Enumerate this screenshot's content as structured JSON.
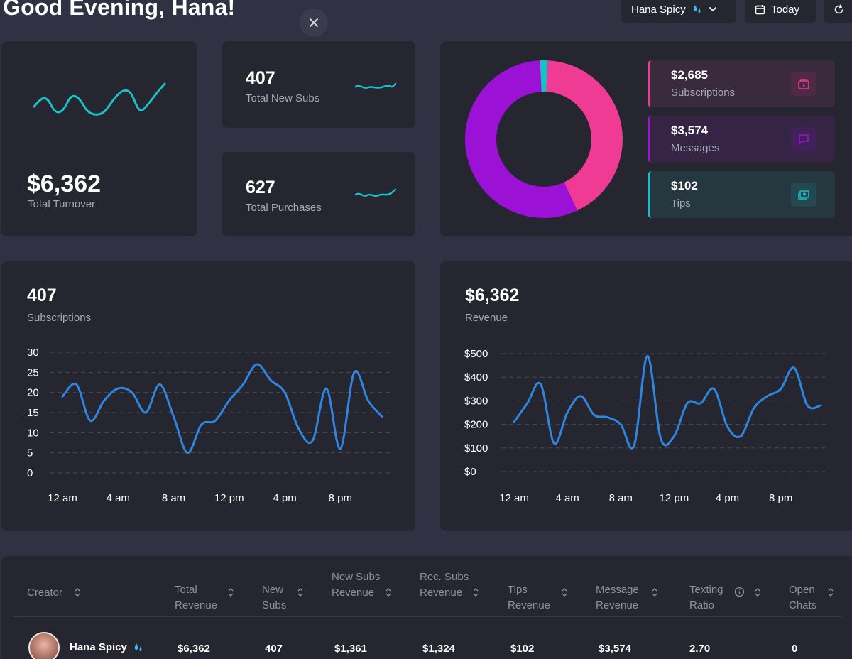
{
  "header": {
    "greeting": "Good Evening, Hana!",
    "creator_select": "Hana Spicy",
    "date_filter": "Today"
  },
  "stats": {
    "turnover_value": "$6,362",
    "turnover_label": "Total Turnover",
    "new_subs_value": "407",
    "new_subs_label": "Total New Subs",
    "purchases_value": "627",
    "purchases_label": "Total Purchases"
  },
  "breakdown": {
    "items": [
      {
        "value": "$2,685",
        "label": "Subscriptions",
        "color": "#ef3b93",
        "icon": "wallet-icon"
      },
      {
        "value": "$3,574",
        "label": "Messages",
        "color": "#9b12d6",
        "icon": "message-icon"
      },
      {
        "value": "$102",
        "label": "Tips",
        "color": "#19c0c8",
        "icon": "cash-icon"
      }
    ]
  },
  "subs_panel": {
    "value": "407",
    "label": "Subscriptions"
  },
  "revenue_panel": {
    "value": "$6,362",
    "label": "Revenue"
  },
  "chart_data": [
    {
      "type": "pie",
      "categories": [
        "Subscriptions",
        "Messages",
        "Tips"
      ],
      "values": [
        2685,
        3574,
        102
      ],
      "colors": [
        "#ef3b93",
        "#9b12d6",
        "#19c0c8"
      ]
    },
    {
      "type": "line",
      "x": [
        "12 am",
        "1 am",
        "2 am",
        "3 am",
        "4 am",
        "5 am",
        "6 am",
        "7 am",
        "8 am",
        "9 am",
        "10 am",
        "11 am",
        "12 pm",
        "1 pm",
        "2 pm",
        "3 pm",
        "4 pm",
        "5 pm",
        "6 pm",
        "7 pm",
        "8 pm",
        "9 pm",
        "10 pm",
        "11 pm"
      ],
      "xticks": [
        "12 am",
        "4 am",
        "8 am",
        "12 pm",
        "4 pm",
        "8 pm"
      ],
      "yticks": [
        "0",
        "5",
        "10",
        "15",
        "20",
        "25",
        "30"
      ],
      "ylim": [
        0,
        30
      ],
      "series": [
        {
          "values": [
            19,
            22,
            13,
            18,
            21,
            20,
            15,
            22,
            14,
            5,
            12,
            13,
            18,
            22,
            27,
            23,
            20,
            11,
            8,
            21,
            6,
            25,
            18,
            14
          ]
        }
      ],
      "color": "#2f86e0"
    },
    {
      "type": "line",
      "x": [
        "12 am",
        "1 am",
        "2 am",
        "3 am",
        "4 am",
        "5 am",
        "6 am",
        "7 am",
        "8 am",
        "9 am",
        "10 am",
        "11 am",
        "12 pm",
        "1 pm",
        "2 pm",
        "3 pm",
        "4 pm",
        "5 pm",
        "6 pm",
        "7 pm",
        "8 pm",
        "9 pm",
        "10 pm",
        "11 pm"
      ],
      "xticks": [
        "12 am",
        "4 am",
        "8 am",
        "12 pm",
        "4 pm",
        "8 pm"
      ],
      "yticks": [
        "$0",
        "$100",
        "$200",
        "$300",
        "$400",
        "$500"
      ],
      "ylim": [
        0,
        500
      ],
      "series": [
        {
          "values": [
            210,
            290,
            370,
            120,
            250,
            320,
            240,
            230,
            200,
            110,
            490,
            140,
            150,
            290,
            290,
            350,
            190,
            150,
            270,
            320,
            350,
            440,
            280,
            280
          ]
        }
      ],
      "color": "#2f86e0"
    }
  ],
  "table": {
    "headers": [
      "Creator",
      "Total Revenue",
      "New Subs",
      "New Subs Revenue",
      "Rec. Subs Revenue",
      "Tips Revenue",
      "Message Revenue",
      "Texting Ratio",
      "Open Chats"
    ],
    "rows": [
      {
        "creator": "Hana Spicy",
        "total_revenue": "$6,362",
        "new_subs": "407",
        "new_subs_revenue": "$1,361",
        "rec_subs_revenue": "$1,324",
        "tips_revenue": "$102",
        "message_revenue": "$3,574",
        "texting_ratio": "2.70",
        "open_chats": "0"
      }
    ]
  }
}
